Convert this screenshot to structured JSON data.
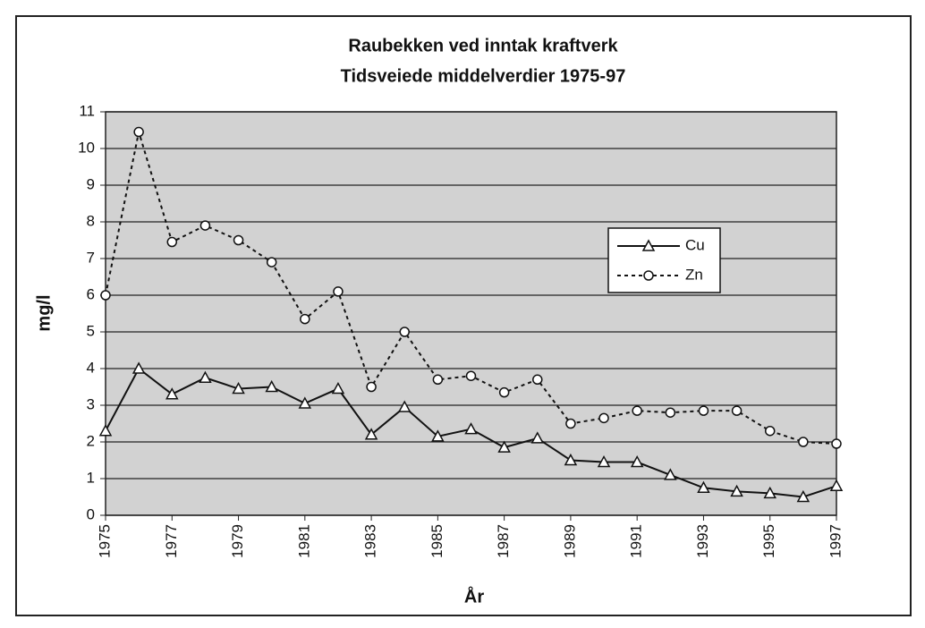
{
  "chart_data": {
    "type": "line",
    "title": [
      "Raubekken ved inntak kraftverk",
      "Tidsveiede middelverdier 1975-97"
    ],
    "x_label": "År",
    "y_label": "mg/l",
    "x": [
      1975,
      1976,
      1977,
      1978,
      1979,
      1980,
      1981,
      1982,
      1983,
      1984,
      1985,
      1986,
      1987,
      1988,
      1989,
      1990,
      1991,
      1992,
      1993,
      1994,
      1995,
      1996,
      1997
    ],
    "xlim": [
      1975,
      1997
    ],
    "xticks": [
      1975,
      1977,
      1979,
      1981,
      1983,
      1985,
      1987,
      1989,
      1991,
      1993,
      1995,
      1997
    ],
    "ylim": [
      0,
      11
    ],
    "yticks": [
      0,
      1,
      2,
      3,
      4,
      5,
      6,
      7,
      8,
      9,
      10,
      11
    ],
    "grid": true,
    "legend": "right",
    "series": [
      {
        "name": "Cu",
        "color": "#111111",
        "linestyle": "solid",
        "marker": "triangle",
        "values": [
          2.3,
          4.0,
          3.3,
          3.75,
          3.45,
          3.5,
          3.05,
          3.45,
          2.2,
          2.95,
          2.15,
          2.35,
          1.85,
          2.1,
          1.5,
          1.45,
          1.45,
          1.1,
          0.75,
          0.65,
          0.6,
          0.5,
          0.8
        ]
      },
      {
        "name": "Zn",
        "color": "#111111",
        "linestyle": "dotted",
        "marker": "circle",
        "values": [
          6.0,
          10.45,
          7.45,
          7.9,
          7.5,
          6.9,
          5.35,
          6.1,
          3.5,
          5.0,
          3.7,
          3.8,
          3.35,
          3.7,
          2.5,
          2.65,
          2.85,
          2.8,
          2.85,
          2.85,
          2.3,
          2.0,
          1.95
        ]
      }
    ]
  }
}
